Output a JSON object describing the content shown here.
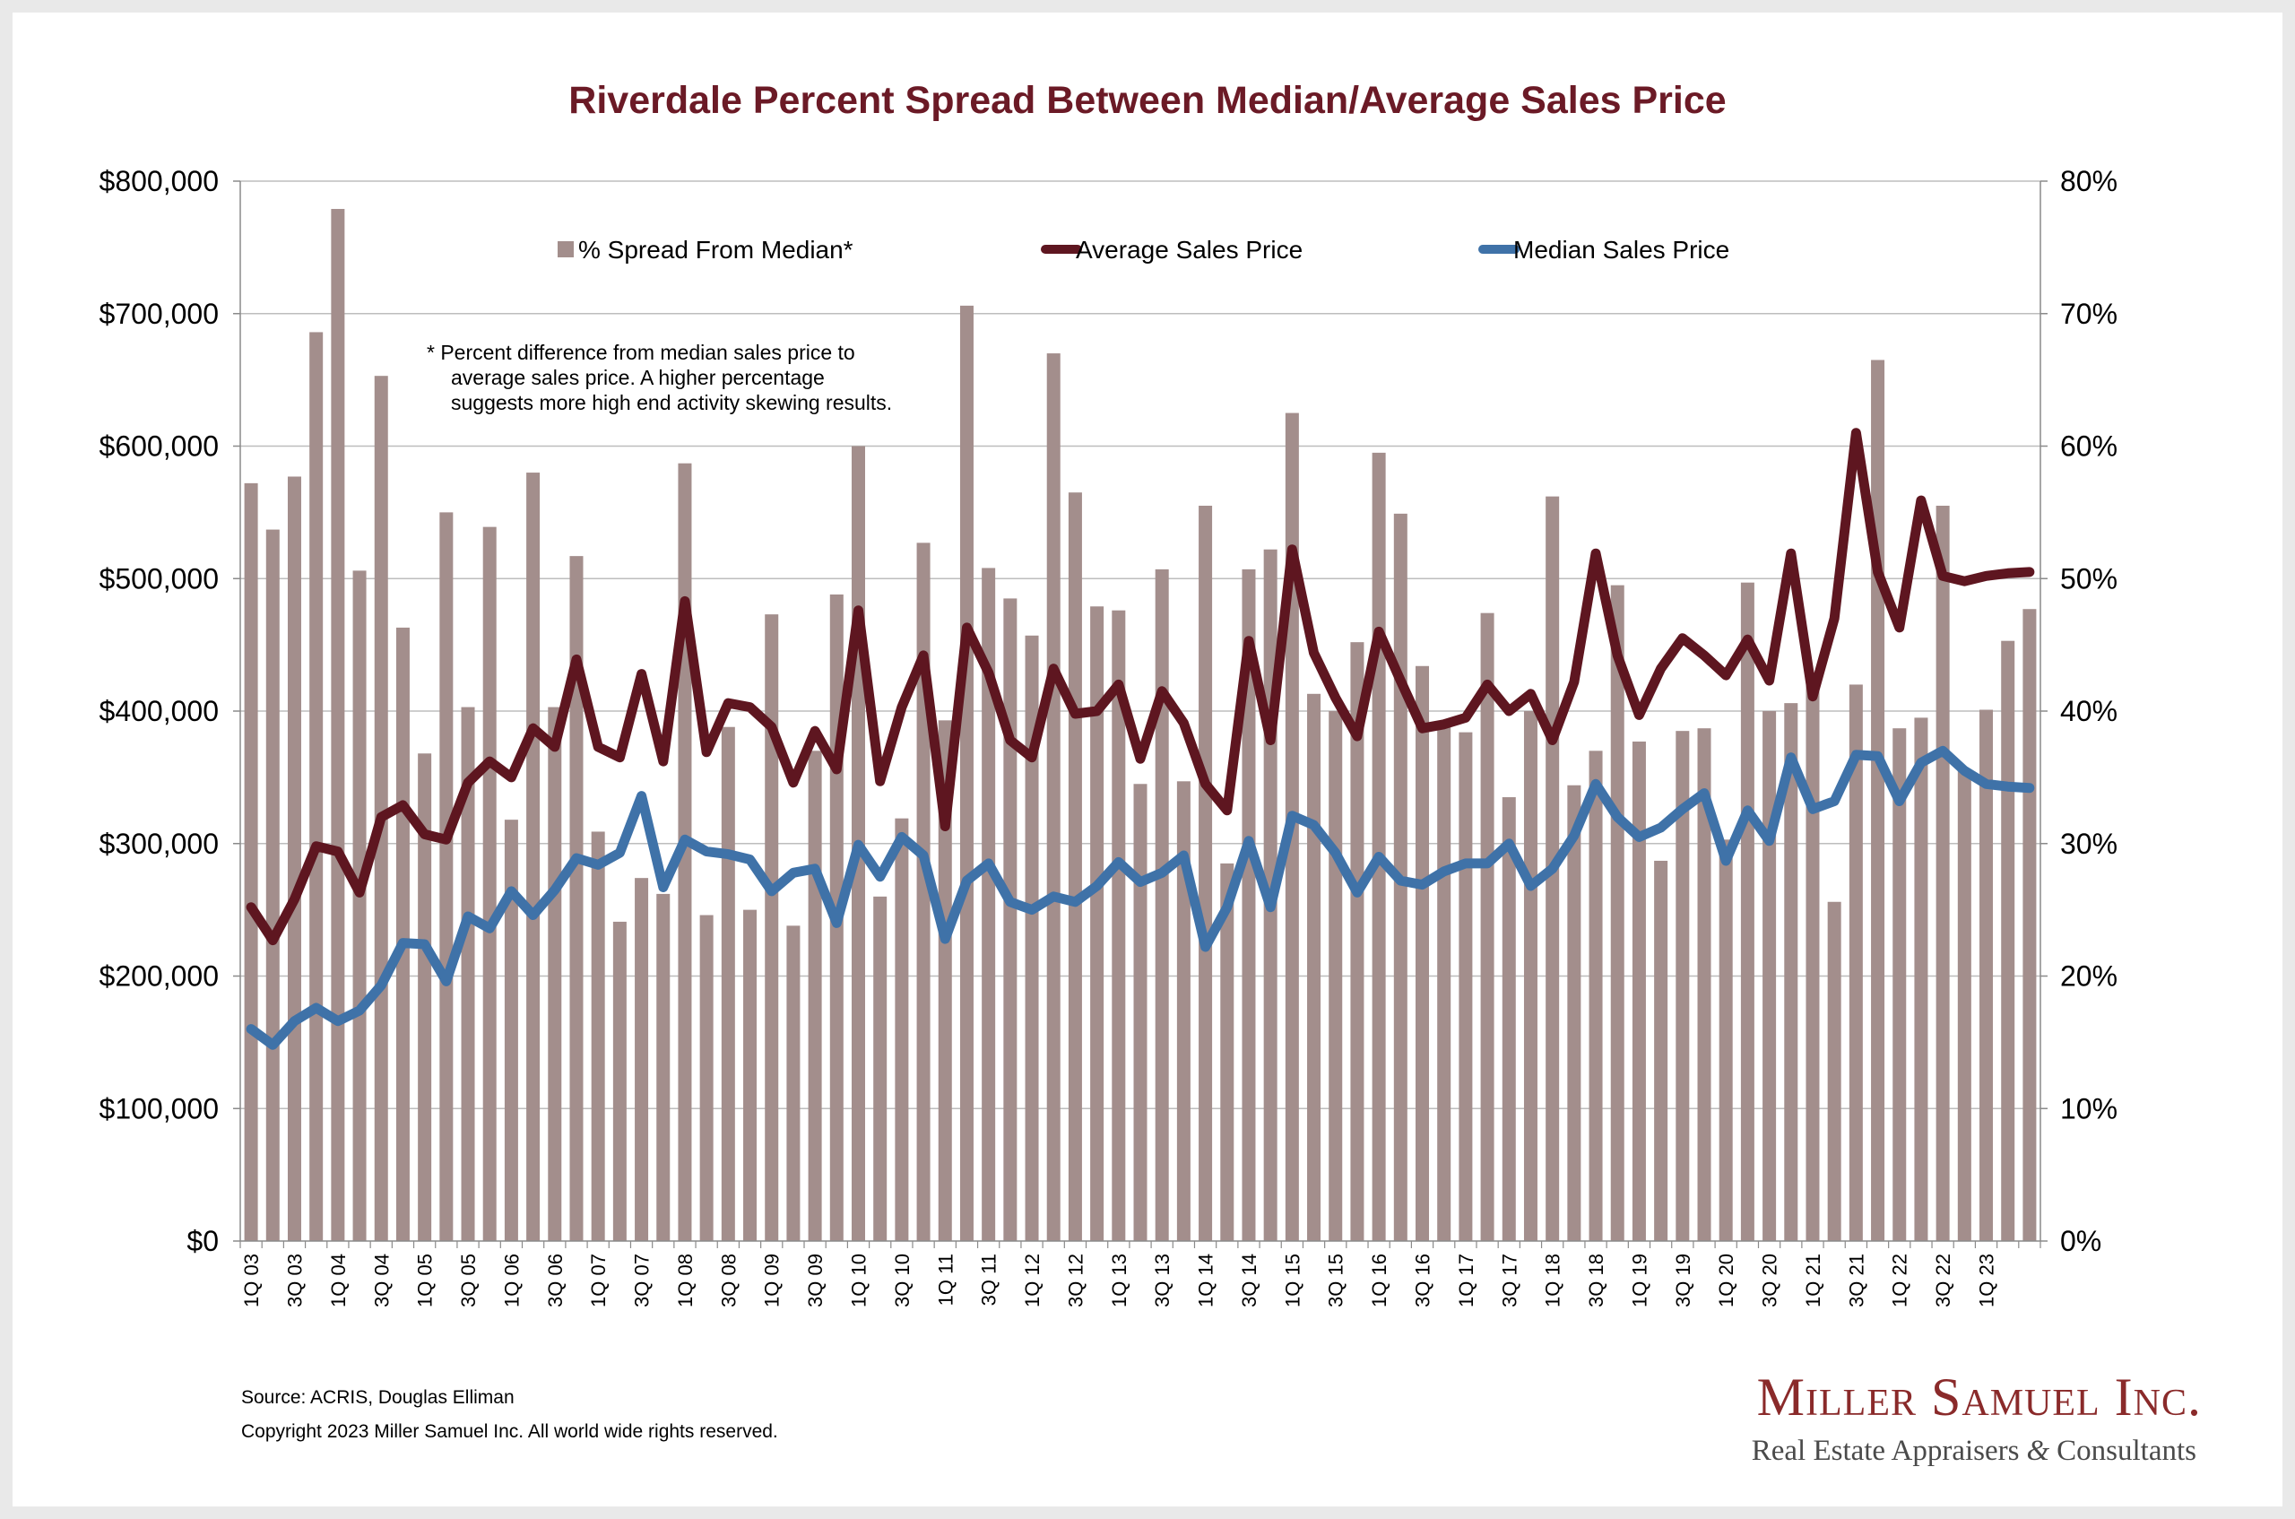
{
  "chart_data": {
    "type": "bar",
    "title": "Riverdale Percent Spread Between Median/Average Sales Price",
    "y_left": {
      "ylim": [
        0,
        800000
      ],
      "ticks": [
        0,
        100000,
        200000,
        300000,
        400000,
        500000,
        600000,
        700000,
        800000
      ],
      "tick_labels": [
        "$0",
        "$100,000",
        "$200,000",
        "$300,000",
        "$400,000",
        "$500,000",
        "$600,000",
        "$700,000",
        "$800,000"
      ]
    },
    "y_right": {
      "ylim": [
        0,
        0.8
      ],
      "ticks": [
        0,
        0.1,
        0.2,
        0.3,
        0.4,
        0.5,
        0.6,
        0.7,
        0.8
      ],
      "tick_labels": [
        "0%",
        "10%",
        "20%",
        "30%",
        "40%",
        "50%",
        "60%",
        "70%",
        "80%"
      ]
    },
    "x_tick_labels": [
      "1Q 03",
      "3Q 03",
      "1Q 04",
      "3Q 04",
      "1Q 05",
      "3Q 05",
      "1Q 06",
      "3Q 06",
      "1Q 07",
      "3Q 07",
      "1Q 08",
      "3Q 08",
      "1Q 09",
      "3Q 09",
      "1Q 10",
      "3Q 10",
      "1Q 11",
      "3Q 11",
      "1Q 12",
      "3Q 12",
      "1Q 13",
      "3Q 13",
      "1Q 14",
      "3Q 14",
      "1Q 15",
      "3Q 15",
      "1Q 16",
      "3Q 16",
      "1Q 17",
      "3Q 17",
      "1Q 18",
      "3Q 18",
      "1Q 19",
      "3Q 19",
      "1Q 20",
      "3Q 20",
      "1Q 21",
      "3Q 21",
      "1Q 22",
      "3Q 22",
      "1Q 23"
    ],
    "series": [
      {
        "name": "% Spread From Median*",
        "type": "bar",
        "axis": "right",
        "color": "#a38e8c",
        "values": [
          0.572,
          0.537,
          0.577,
          0.686,
          0.779,
          0.506,
          0.653,
          0.463,
          0.368,
          0.55,
          0.403,
          0.539,
          0.318,
          0.58,
          0.403,
          0.517,
          0.309,
          0.241,
          0.274,
          0.262,
          0.587,
          0.246,
          0.388,
          0.25,
          0.473,
          0.238,
          0.37,
          0.488,
          0.6,
          0.26,
          0.319,
          0.527,
          0.393,
          0.706,
          0.508,
          0.485,
          0.457,
          0.67,
          0.565,
          0.479,
          0.476,
          0.345,
          0.507,
          0.347,
          0.555,
          0.285,
          0.507,
          0.522,
          0.625,
          0.413,
          0.4,
          0.452,
          0.595,
          0.549,
          0.434,
          0.388,
          0.384,
          0.474,
          0.335,
          0.4,
          0.562,
          0.344,
          0.37,
          0.495,
          0.377,
          0.287,
          0.385,
          0.387,
          0.303,
          0.497,
          0.4,
          0.406,
          0.425,
          0.256,
          0.42,
          0.665,
          0.387,
          0.395,
          0.555,
          0.356,
          0.401,
          0.453,
          0.477
        ]
      },
      {
        "name": "Average Sales Price",
        "type": "line",
        "axis": "left",
        "color": "#5e1620",
        "values": [
          252000,
          227000,
          258000,
          298000,
          294000,
          263000,
          320000,
          329000,
          307000,
          303000,
          346000,
          362000,
          350000,
          387000,
          373000,
          439000,
          373000,
          365000,
          428000,
          362000,
          483000,
          369000,
          406000,
          403000,
          388000,
          346000,
          385000,
          356000,
          476000,
          347000,
          403000,
          442000,
          313000,
          463000,
          429000,
          378000,
          365000,
          432000,
          398000,
          400000,
          420000,
          364000,
          415000,
          391000,
          345000,
          325000,
          453000,
          378000,
          522000,
          444000,
          410000,
          381000,
          460000,
          423000,
          387000,
          390000,
          395000,
          420000,
          400000,
          413000,
          378000,
          422000,
          519000,
          442000,
          397000,
          432000,
          455000,
          442000,
          427000,
          454000,
          423000,
          519000,
          411000,
          470000,
          610000,
          505000,
          463000,
          559000,
          502000,
          498000,
          502000,
          504000,
          505000
        ]
      },
      {
        "name": "Median Sales Price",
        "type": "line",
        "axis": "left",
        "color": "#3f72a8",
        "values": [
          160000,
          148000,
          166000,
          176000,
          166000,
          174000,
          193000,
          225000,
          224000,
          196000,
          245000,
          236000,
          264000,
          246000,
          265000,
          289000,
          284000,
          293000,
          336000,
          267000,
          303000,
          294000,
          292000,
          288000,
          264000,
          278000,
          281000,
          240000,
          299000,
          275000,
          305000,
          291000,
          228000,
          272000,
          285000,
          256000,
          250000,
          260000,
          256000,
          268000,
          286000,
          271000,
          278000,
          291000,
          222000,
          252000,
          302000,
          252000,
          321000,
          314000,
          293000,
          263000,
          290000,
          272000,
          269000,
          279000,
          285000,
          285000,
          300000,
          268000,
          281000,
          306000,
          345000,
          320000,
          305000,
          312000,
          326000,
          338000,
          287000,
          325000,
          302000,
          365000,
          326000,
          332000,
          367000,
          366000,
          332000,
          361000,
          370000,
          355000,
          345000,
          343000,
          342000
        ]
      }
    ]
  },
  "note": {
    "line1": "*  Percent difference from median sales price to",
    "line2": "average sales price.  A higher percentage",
    "line3": "suggests more high end activity skewing results."
  },
  "footer": {
    "source": "Source: ACRIS, Douglas Elliman",
    "copyright": "Copyright 2023 Miller Samuel Inc.  All world wide rights reserved."
  },
  "logo": {
    "name": "Miller Samuel Inc.",
    "tagline_part1": "Real Estate Appraisers",
    "ampersand": "&",
    "tagline_part2": "Consultants"
  }
}
